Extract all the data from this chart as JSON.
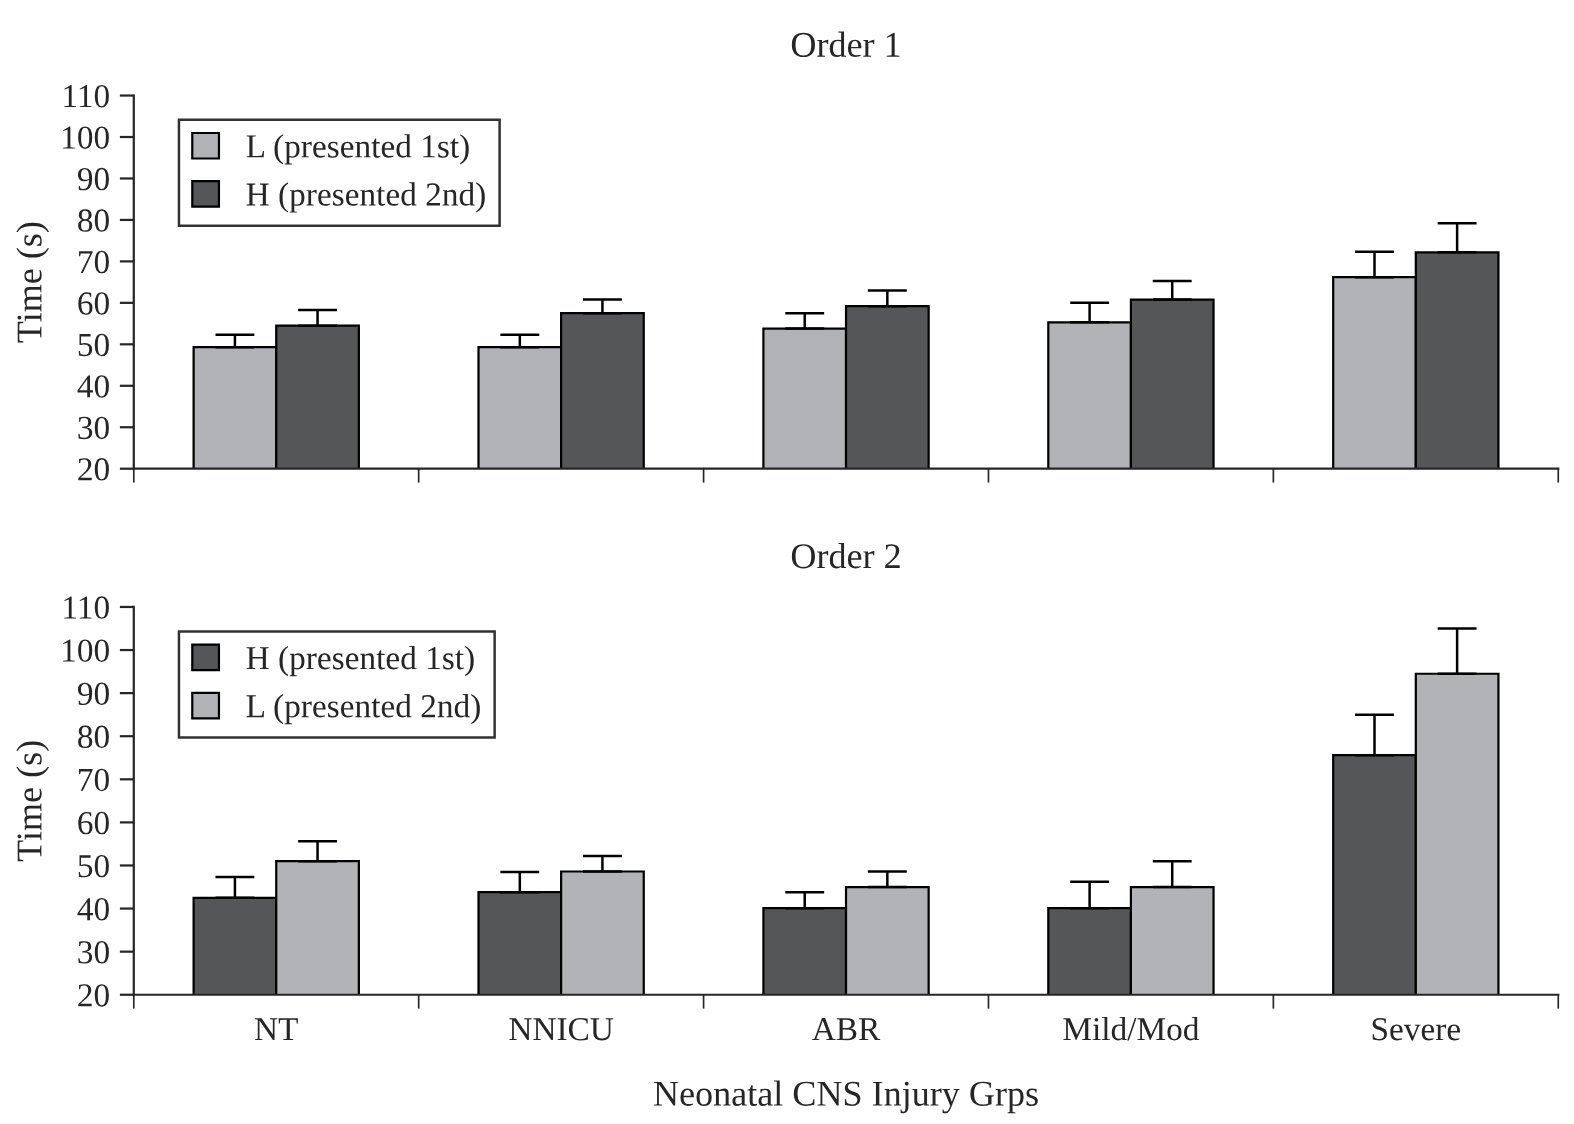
{
  "chart_data": [
    {
      "type": "bar",
      "title": "Order 1",
      "ylabel": "Time (s)",
      "categories": [
        null,
        null,
        null,
        null,
        null
      ],
      "ylim": [
        20,
        110
      ],
      "yticks": [
        20,
        30,
        40,
        50,
        60,
        70,
        80,
        90,
        100,
        110
      ],
      "tick_labels": "y",
      "legend": "top left",
      "grid": false,
      "series": [
        {
          "name": "L (presented 1st)",
          "color": "#b2b3b7",
          "values": [
            49.3,
            49.3,
            53.8,
            55.3,
            66.2
          ],
          "errors": [
            [
              49.3,
              52.3
            ],
            [
              49.3,
              52.3
            ],
            [
              53.8,
              57.5
            ],
            [
              55.3,
              60
            ],
            [
              66.2,
              72.3
            ]
          ]
        },
        {
          "name": "H (presented 2nd)",
          "color": "#555658",
          "values": [
            54.5,
            57.5,
            59.2,
            60.8,
            72.2
          ],
          "errors": [
            [
              54.5,
              58.3
            ],
            [
              57.5,
              60.8
            ],
            [
              59.2,
              63
            ],
            [
              60.8,
              65.3
            ],
            [
              72.2,
              79.2
            ]
          ]
        }
      ]
    },
    {
      "type": "bar",
      "title": "Order 2",
      "ylabel": "Time (s)",
      "xlabel": "Neonatal CNS Injury Grps",
      "categories": [
        "NT",
        "NNICU",
        "ABR",
        "Mild/Mod",
        "Severe"
      ],
      "ylim": [
        20,
        110
      ],
      "yticks": [
        20,
        30,
        40,
        50,
        60,
        70,
        80,
        90,
        100,
        110
      ],
      "legend": "top left",
      "grid": false,
      "series": [
        {
          "name": "H (presented 1st)",
          "color": "#555658",
          "values": [
            42.5,
            43.8,
            40.1,
            40.1,
            75.6
          ],
          "errors": [
            [
              42.5,
              47.3
            ],
            [
              43.8,
              48.5
            ],
            [
              40.1,
              43.8
            ],
            [
              40.1,
              46.2
            ],
            [
              75.6,
              85
            ]
          ]
        },
        {
          "name": "L (presented 2nd)",
          "color": "#b2b3b7",
          "values": [
            51,
            48.6,
            45,
            45,
            94.5
          ],
          "errors": [
            [
              51,
              55.6
            ],
            [
              48.6,
              52.2
            ],
            [
              45,
              48.6
            ],
            [
              45,
              51
            ],
            [
              94.5,
              105
            ]
          ]
        }
      ]
    }
  ]
}
